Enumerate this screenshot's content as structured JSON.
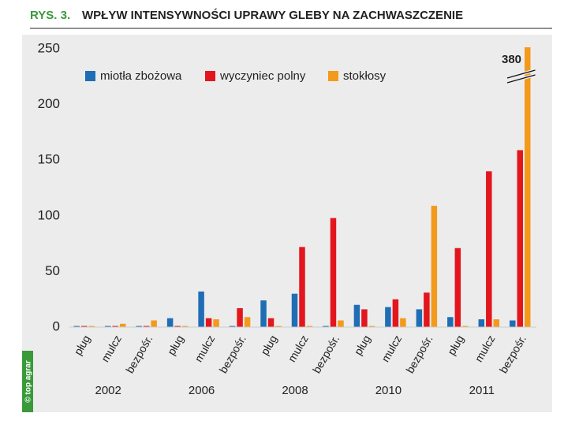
{
  "figure_label": "RYS. 3.",
  "credit": "© top agrar",
  "chart_data": {
    "type": "bar",
    "title": "WPŁYW INTENSYWNOŚCI UPRAWY GLEBY NA ZACHWASZCZENIE",
    "categories": [
      "pług",
      "mulcz",
      "bezpośr.",
      "pług",
      "mulcz",
      "bezpośr.",
      "pług",
      "mulcz",
      "bezpośr.",
      "pług",
      "mulcz",
      "bezpośr.",
      "pług",
      "mulcz",
      "bezpośr."
    ],
    "groups": [
      "2002",
      "2006",
      "2008",
      "2010",
      "2011"
    ],
    "series": [
      {
        "name": "miotła zbożowa",
        "color": "#1f6db5",
        "values": [
          1,
          1,
          1,
          8,
          32,
          1,
          24,
          30,
          1,
          20,
          18,
          16,
          9,
          7,
          6
        ]
      },
      {
        "name": "wyczyniec polny",
        "color": "#e3161e",
        "values": [
          1,
          1,
          1,
          1,
          8,
          17,
          8,
          72,
          98,
          16,
          25,
          31,
          71,
          140,
          159
        ]
      },
      {
        "name": "stokłosy",
        "color": "#f39a1c",
        "values": [
          1,
          3,
          6,
          1,
          7,
          9,
          1,
          1,
          6,
          1,
          8,
          109,
          1,
          7,
          380
        ]
      }
    ],
    "ylim": [
      0,
      250
    ],
    "yticks": [
      0,
      50,
      100,
      150,
      200,
      250
    ],
    "grid": false,
    "legend": "top-left",
    "axis_break": true
  }
}
